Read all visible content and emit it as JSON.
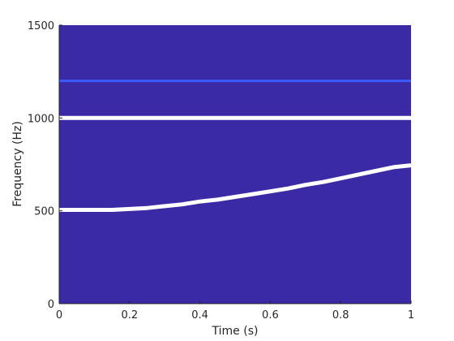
{
  "chart_data": {
    "type": "heatmap",
    "title": "",
    "xlabel": "Time (s)",
    "ylabel": "Frequency (Hz)",
    "xlim": [
      0,
      1
    ],
    "ylim": [
      0,
      1500
    ],
    "xticks": [
      0,
      0.2,
      0.4,
      0.6,
      0.8,
      1
    ],
    "xtick_labels": [
      "0",
      "0.2",
      "0.4",
      "0.6",
      "0.8",
      "1"
    ],
    "yticks": [
      0,
      500,
      1000,
      1500
    ],
    "ytick_labels": [
      "0",
      "500",
      "1000",
      "1500"
    ],
    "grid": false,
    "colors": {
      "background": "#3a2aa6",
      "strong": "#ffffff",
      "weak": "#3b5bff",
      "axis": "#262626"
    },
    "series": [
      {
        "intensity": "weak",
        "time": [
          0,
          1
        ],
        "frequency": [
          1200,
          1200
        ]
      },
      {
        "intensity": "strong",
        "time": [
          0,
          1
        ],
        "frequency": [
          1000,
          1000
        ]
      },
      {
        "intensity": "strong",
        "time": [
          0,
          0.05,
          0.1,
          0.15,
          0.2,
          0.25,
          0.3,
          0.35,
          0.4,
          0.45,
          0.5,
          0.55,
          0.6,
          0.65,
          0.7,
          0.75,
          0.8,
          0.85,
          0.9,
          0.95,
          1.0
        ],
        "frequency": [
          505,
          505,
          505,
          505,
          510,
          515,
          525,
          535,
          550,
          560,
          575,
          590,
          605,
          620,
          640,
          655,
          675,
          695,
          715,
          735,
          745
        ]
      }
    ]
  }
}
